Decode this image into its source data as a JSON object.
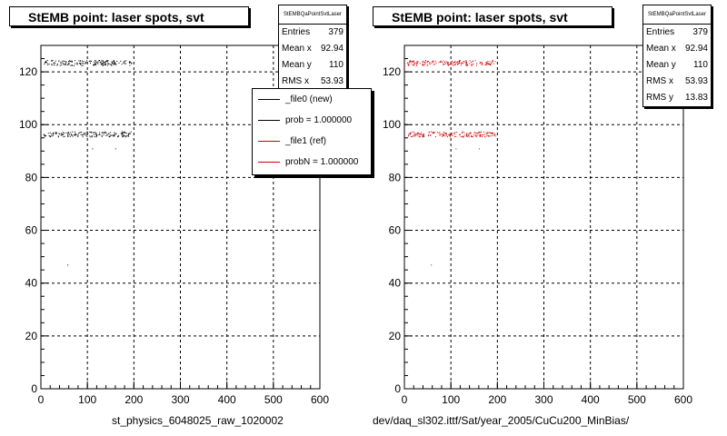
{
  "chart_data": [
    {
      "type": "scatter",
      "title": "StEMB point: laser spots, svt",
      "xlabel": "st_physics_6048025_raw_1020002",
      "ylabel": "",
      "xlim": [
        0,
        600
      ],
      "ylim": [
        0,
        130
      ],
      "xticks": [
        0,
        100,
        200,
        300,
        400,
        500,
        600
      ],
      "yticks": [
        0,
        20,
        40,
        60,
        80,
        100,
        120
      ],
      "grid": true,
      "stats": {
        "name": "StEMBQaPointSvtLaser",
        "rows": [
          {
            "label": "Entries",
            "value": "379"
          },
          {
            "label": "Mean x",
            "value": "92.94"
          },
          {
            "label": "Mean y",
            "value": "110"
          },
          {
            "label": "RMS x",
            "value": "53.93"
          }
        ]
      },
      "legend": {
        "placement": "top-right",
        "entries": [
          {
            "label": "_file0 (new)",
            "color": "#000000"
          },
          {
            "label": "prob = 1.000000",
            "color": "#000000"
          },
          {
            "label": "_file1 (ref)",
            "color": "#cc0000"
          },
          {
            "label": "probN = 1.000000",
            "color": "#cc0000"
          }
        ]
      },
      "series": [
        {
          "color": "#000000",
          "bands": [
            {
              "x": [
                5,
                195
              ],
              "y": [
                122.5,
                124.5
              ]
            },
            {
              "x": [
                5,
                195
              ],
              "y": [
                95.5,
                97.5
              ]
            }
          ],
          "points": [
            [
              57,
              47
            ],
            [
              110,
              91
            ],
            [
              160,
              91
            ]
          ]
        }
      ]
    },
    {
      "type": "scatter",
      "title": "StEMB point: laser spots, svt",
      "xlabel": "dev/daq_sl302.ittf/Sat/year_2005/CuCu200_MinBias/",
      "ylabel": "",
      "xlim": [
        0,
        600
      ],
      "ylim": [
        0,
        130
      ],
      "xticks": [
        0,
        100,
        200,
        300,
        400,
        500,
        600
      ],
      "yticks": [
        0,
        20,
        40,
        60,
        80,
        100,
        120
      ],
      "grid": true,
      "stats": {
        "name": "StEMBQaPointSvtLaser",
        "rows": [
          {
            "label": "Entries",
            "value": "379"
          },
          {
            "label": "Mean x",
            "value": "92.94"
          },
          {
            "label": "Mean y",
            "value": "110"
          },
          {
            "label": "RMS x",
            "value": "53.93"
          },
          {
            "label": "RMS y",
            "value": "13.83"
          }
        ]
      },
      "series": [
        {
          "color": "#cc0000",
          "bands": [
            {
              "x": [
                5,
                195
              ],
              "y": [
                122.5,
                124.5
              ]
            },
            {
              "x": [
                5,
                195
              ],
              "y": [
                95.5,
                97.5
              ]
            }
          ],
          "points": [
            [
              57,
              47
            ],
            [
              110,
              91
            ],
            [
              160,
              91
            ]
          ]
        }
      ]
    }
  ],
  "colors": {
    "grid": "#000000",
    "frame": "#000000",
    "new": "#000000",
    "ref": "#cc0000"
  }
}
